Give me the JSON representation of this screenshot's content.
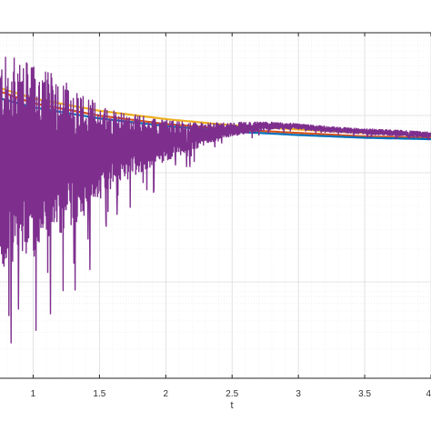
{
  "chart_data": {
    "type": "line",
    "xlabel": "t",
    "ylabel": "",
    "title": "",
    "xlim": [
      0.75,
      4.0
    ],
    "x_ticks": [
      1,
      1.5,
      2,
      2.5,
      3,
      3.5,
      4
    ],
    "x_tick_labels": [
      "1",
      "1.5",
      "2",
      "2.5",
      "3",
      "3.5",
      "4"
    ],
    "ylim": [
      0,
      1
    ],
    "y_scale": "log",
    "y_major_grid": [
      0.127,
      0.31,
      0.617
    ],
    "y_minor_grid": true,
    "grid": true,
    "x_minor_grid": true,
    "series": [
      {
        "color": "#EDB120",
        "x": [
          0.75,
          1.0,
          1.5,
          2.0,
          2.5,
          3.0,
          3.5,
          4.0
        ],
        "y": [
          0.62,
          0.605,
          0.587,
          0.575,
          0.566,
          0.56,
          0.555,
          0.552
        ]
      },
      {
        "color": "#D95319",
        "x": [
          0.75,
          1.0,
          1.5,
          2.0,
          2.5,
          3.0,
          3.5,
          4.0
        ],
        "y": [
          0.615,
          0.598,
          0.58,
          0.568,
          0.56,
          0.555,
          0.55,
          0.548
        ]
      },
      {
        "color": "#0072BD",
        "x": [
          0.75,
          1.0,
          1.5,
          2.0,
          2.5,
          3.0,
          3.5,
          4.0
        ],
        "y": [
          0.605,
          0.592,
          0.576,
          0.565,
          0.557,
          0.552,
          0.548,
          0.546
        ]
      },
      {
        "color": "#7E2F8E",
        "noisy": true,
        "x": [
          0.75,
          1.0,
          1.25,
          1.5,
          1.75,
          2.0,
          2.25,
          2.5,
          2.75,
          2.95,
          3.25,
          3.5,
          3.75,
          4.0
        ],
        "y": [
          0.51,
          0.515,
          0.52,
          0.528,
          0.537,
          0.544,
          0.552,
          0.56,
          0.565,
          0.565,
          0.56,
          0.557,
          0.555,
          0.552
        ],
        "noise_amplitude": [
          0.16,
          0.14,
          0.11,
          0.07,
          0.045,
          0.03,
          0.018,
          0.01,
          0.006,
          0.004,
          0.004,
          0.004,
          0.004,
          0.004
        ]
      }
    ]
  }
}
